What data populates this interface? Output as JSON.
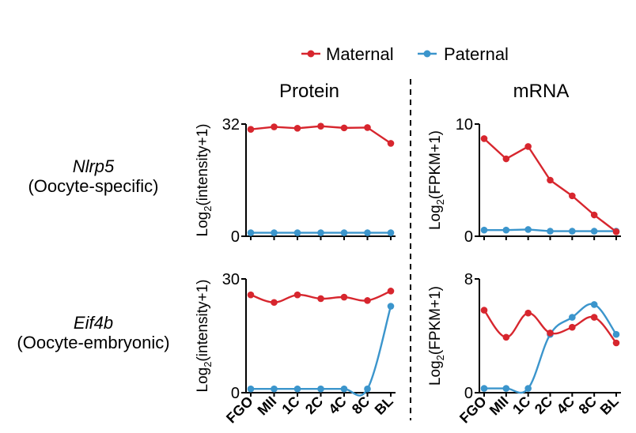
{
  "legend": {
    "maternal": "Maternal",
    "paternal": "Paternal"
  },
  "colors": {
    "maternal": "#d7262e",
    "paternal": "#3b95cc"
  },
  "columns": {
    "protein": "Protein",
    "mrna": "mRNA"
  },
  "rows": [
    {
      "gene": "Nlrp5",
      "category": "(Oocyte-specific)"
    },
    {
      "gene": "Eif4b",
      "category": "(Oocyte-embryonic)"
    }
  ],
  "stages": [
    "FGO",
    "MII",
    "1C",
    "2C",
    "4C",
    "8C",
    "BL"
  ],
  "chart_data": [
    {
      "type": "line",
      "panel": "Nlrp5 Protein",
      "ylabel_main": "Log",
      "ylabel_sub": "2",
      "ylabel_rest": "(intensity+1)",
      "ylim": [
        0,
        32
      ],
      "yticks": [
        "0",
        "32"
      ],
      "smooth": false,
      "series": [
        {
          "name": "Maternal",
          "values": [
            30.5,
            31.2,
            30.8,
            31.4,
            30.9,
            31.0,
            26.5
          ]
        },
        {
          "name": "Paternal",
          "values": [
            1.0,
            1.0,
            1.0,
            1.0,
            1.0,
            1.0,
            1.0
          ]
        }
      ]
    },
    {
      "type": "line",
      "panel": "Nlrp5 mRNA",
      "ylabel_main": "Log",
      "ylabel_sub": "2",
      "ylabel_rest": "(FPKM+1)",
      "ylim": [
        0,
        10
      ],
      "yticks": [
        "0",
        "10"
      ],
      "smooth": false,
      "series": [
        {
          "name": "Maternal",
          "values": [
            8.7,
            6.9,
            8.0,
            5.0,
            3.6,
            1.9,
            0.4
          ]
        },
        {
          "name": "Paternal",
          "values": [
            0.55,
            0.55,
            0.6,
            0.45,
            0.45,
            0.45,
            0.45
          ]
        }
      ]
    },
    {
      "type": "line",
      "panel": "Eif4b Protein",
      "ylabel_main": "Log",
      "ylabel_sub": "2",
      "ylabel_rest": "(intensity+1)",
      "ylim": [
        0,
        30
      ],
      "yticks": [
        "0",
        "30"
      ],
      "smooth": true,
      "series": [
        {
          "name": "Maternal",
          "values": [
            25.8,
            23.8,
            25.8,
            24.8,
            25.2,
            24.3,
            26.8
          ]
        },
        {
          "name": "Paternal",
          "values": [
            1.0,
            1.0,
            1.0,
            1.0,
            1.0,
            1.0,
            22.8
          ]
        }
      ]
    },
    {
      "type": "line",
      "panel": "Eif4b mRNA",
      "ylabel_main": "Log",
      "ylabel_sub": "2",
      "ylabel_rest": "(FPKM+1)",
      "ylim": [
        0,
        8
      ],
      "yticks": [
        "0",
        "8"
      ],
      "smooth": true,
      "series": [
        {
          "name": "Maternal",
          "values": [
            5.8,
            3.9,
            5.6,
            4.2,
            4.6,
            5.3,
            3.5
          ]
        },
        {
          "name": "Paternal",
          "values": [
            0.3,
            0.3,
            0.3,
            4.1,
            5.3,
            6.2,
            4.1
          ]
        }
      ]
    }
  ]
}
